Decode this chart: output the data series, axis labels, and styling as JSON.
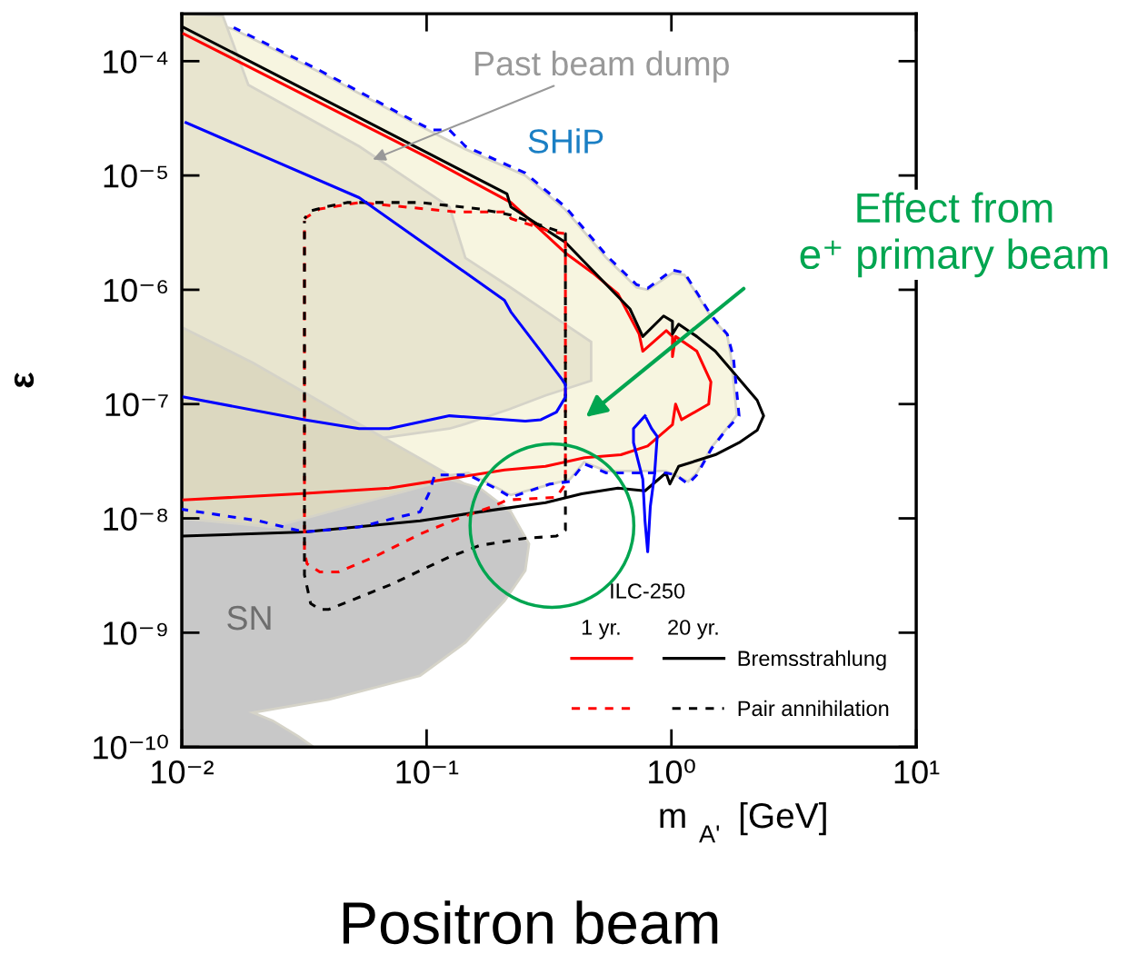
{
  "chart_data": {
    "type": "line",
    "xlabel": "m$_{A'}$ [GeV]",
    "ylabel": "ε",
    "legend_title": "ILC-250",
    "legend": "bottom right",
    "log": "xy",
    "grid": false,
    "xlim": [
      0.01,
      10
    ],
    "ylim": [
      1e-10,
      0.00026
    ],
    "xticks": [
      {
        "value": 0.01,
        "label": "10⁻²"
      },
      {
        "value": 0.1,
        "label": "10⁻¹"
      },
      {
        "value": 1,
        "label": "10⁰"
      },
      {
        "value": 10,
        "label": "10¹"
      }
    ],
    "yticks": [
      {
        "value": 1e-10,
        "label": "10⁻¹⁰"
      },
      {
        "value": 1e-09,
        "label": "10⁻⁹"
      },
      {
        "value": 1e-08,
        "label": "10⁻⁸"
      },
      {
        "value": 1e-07,
        "label": "10⁻⁷"
      },
      {
        "value": 1e-06,
        "label": "10⁻⁶"
      },
      {
        "value": 1e-05,
        "label": "10⁻⁵"
      },
      {
        "value": 0.0001,
        "label": "10⁻⁴"
      }
    ],
    "series": [
      {
        "type": "area",
        "color": "#f7f5e0",
        "x": [
          0.01,
          0.0163,
          0.0366,
          0.0885,
          0.144,
          0.253,
          0.369,
          0.542,
          0.72,
          0.8,
          1.01,
          1.13,
          1.46,
          1.69,
          1.75,
          1.85,
          1.69,
          1.46,
          1.27,
          1.17,
          0.95,
          0.542,
          0.44,
          0.385,
          0.221,
          0.148,
          0.102,
          0.053,
          0.0317,
          0.0207,
          0.01
        ],
        "values": [
          0.00026,
          0.00019,
          8e-05,
          2.9e-05,
          1.7e-05,
          1e-05,
          5e-06,
          1.9e-06,
          1.05e-06,
          1e-06,
          1.4e-06,
          1.35e-06,
          5.7e-07,
          4e-07,
          2.6e-07,
          8e-08,
          6.2e-08,
          4.2e-08,
          2.5e-08,
          2.1e-08,
          2.6e-08,
          2.6e-08,
          3.1e-08,
          2.2e-08,
          1.6e-08,
          2.5e-08,
          null,
          null,
          null,
          null,
          1.2e-08
        ]
      },
      {
        "type": "area",
        "color": "#e8e5cf",
        "x": [
          0.01,
          0.0147,
          0.0187,
          0.0245,
          0.053,
          0.124,
          0.144,
          0.217,
          0.306,
          0.47,
          0.47,
          0.306,
          0.217,
          0.144,
          0.124,
          0.053,
          0.0245,
          0.0187,
          0.0147,
          0.01
        ],
        "values": [
          0.00026,
          0.00025,
          6.2e-05,
          4.5e-05,
          1.8e-05,
          5.3e-06,
          1.9e-06,
          1.07e-06,
          6.5e-07,
          3.5e-07,
          1.6e-07,
          1.19e-07,
          9e-08,
          6.7e-08,
          6.1e-08,
          null,
          null,
          null,
          null,
          2.85e-08
        ]
      },
      {
        "type": "area",
        "color": "#dcd8c0",
        "x": [
          0.01,
          0.0195,
          0.05,
          0.1,
          0.217,
          0.1,
          0.05,
          0.01
        ],
        "values": [
          4.7e-07,
          2.3e-07,
          7.2e-08,
          3.1e-08,
          1.2e-08,
          null,
          null,
          7e-09
        ]
      },
      {
        "type": "area",
        "color": "#c8c8c8",
        "x": [
          0.01,
          0.0235,
          0.0603,
          0.124,
          0.165,
          0.221,
          0.262,
          0.253,
          0.208,
          0.144,
          0.094,
          0.04,
          0.0195,
          0.0235,
          0.0299,
          0.0345,
          0.01
        ],
        "values": [
          1e-08,
          8.4e-09,
          1.45e-08,
          2.2e-08,
          1.84e-08,
          1.14e-08,
          6e-09,
          3.5e-09,
          1.9e-09,
          8.2e-10,
          4.2e-10,
          2.6e-10,
          2e-10,
          1.7e-10,
          1.24e-10,
          1e-10,
          1e-10
        ]
      },
      {
        "line_style": "solid",
        "color": "#ff0000",
        "x": [
          0.0102,
          0.0304,
          0.1006,
          0.221,
          0.369,
          0.476,
          0.605,
          0.738,
          0.764,
          0.953,
          1.01,
          1.01,
          1.04,
          1.27,
          1.45,
          1.42,
          1.1,
          1.04,
          1.01,
          0.8,
          0.622,
          0.442,
          0.306,
          0.208,
          0.0703,
          0.0299,
          0.0102
        ],
        "values": [
          0.000173,
          5.3e-05,
          1.44e-05,
          5.8e-06,
          2.1e-06,
          1.41e-06,
          9.2e-07,
          4.1e-07,
          2.9e-07,
          4.4e-07,
          3.9e-07,
          2.6e-07,
          3.9e-07,
          2.9e-07,
          1.56e-07,
          1e-07,
          7.3e-08,
          1e-07,
          6.6e-08,
          4.3e-08,
          3.6e-08,
          3.4e-08,
          2.85e-08,
          2.65e-08,
          1.84e-08,
          1.64e-08,
          1.45e-08
        ]
      },
      {
        "line_style": "solid",
        "name": "Bremsstrahlung",
        "color": "#000000",
        "x": [
          0.0102,
          0.0466,
          0.213,
          0.221,
          0.369,
          0.677,
          0.764,
          0.929,
          1.01,
          1.01,
          1.07,
          1.27,
          1.51,
          1.79,
          2.24,
          2.38,
          2.24,
          1.89,
          1.51,
          1.07,
          0.986,
          0.95,
          0.78,
          0.605,
          0.43,
          0.306,
          0.165,
          0.094,
          0.0317,
          0.0102
        ],
        "values": [
          0.000197,
          3.7e-05,
          6.9e-06,
          5.3e-06,
          2.6e-06,
          6.8e-07,
          3.9e-07,
          5.9e-07,
          5.3e-07,
          4.1e-07,
          5e-07,
          3.9e-07,
          2.9e-07,
          1.9e-07,
          1.08e-07,
          7.9e-08,
          5.9e-08,
          4.6e-08,
          3.6e-08,
          2.85e-08,
          2e-08,
          2.5e-08,
          1.74e-08,
          1.84e-08,
          1.64e-08,
          1.37e-08,
          1.14e-08,
          9.5e-09,
          7.6e-09,
          7e-09
        ]
      },
      {
        "line_style": "dashed",
        "color": "#ff0000",
        "x": [
          0.0317,
          0.0366,
          0.053,
          0.132,
          0.213,
          0.221,
          0.326,
          0.369,
          0.369,
          0.339,
          0.213,
          0.186,
          0.135,
          0.094,
          0.0612,
          0.0436,
          0.0366,
          0.0325,
          0.0317,
          0.0317
        ],
        "values": [
          4.2e-06,
          5.1e-06,
          5.8e-06,
          4.8e-06,
          4.8e-06,
          4.2e-06,
          3.2e-06,
          3.1e-06,
          2e-08,
          1.53e-08,
          1.45e-08,
          1.27e-08,
          1e-08,
          7.3e-09,
          4.6e-09,
          3.4e-09,
          3.4e-09,
          4e-09,
          5e-09,
          4e-06
        ]
      },
      {
        "line_style": "dashed",
        "name": "Pair annihilation",
        "color": "#000000",
        "x": [
          0.0317,
          0.0336,
          0.0385,
          0.0473,
          0.094,
          0.165,
          0.221,
          0.369,
          0.369,
          0.339,
          0.253,
          0.165,
          0.124,
          0.0703,
          0.0399,
          0.0366,
          0.0336,
          0.0317,
          0.0317
        ],
        "values": [
          4.2e-06,
          4.9e-06,
          5.3e-06,
          5.8e-06,
          5.8e-06,
          5.1e-06,
          4.5e-06,
          3.1e-06,
          7.9e-09,
          7e-09,
          6.7e-09,
          5.8e-09,
          4.6e-09,
          2.6e-09,
          1.6e-09,
          1.6e-09,
          1.8e-09,
          3.2e-09,
          4e-06
        ]
      },
      {
        "line_style": "dashed",
        "color": "#0000ff",
        "x": [
          0.0163,
          0.0366,
          0.0885,
          0.105,
          0.124,
          0.144,
          0.253,
          0.369,
          0.476,
          0.542,
          0.72,
          0.8,
          1.01,
          1.13,
          1.46,
          1.69,
          1.79,
          1.89,
          1.69,
          1.46,
          1.27,
          1.17,
          1.04,
          0.95,
          0.76,
          0.542,
          0.44,
          0.385,
          0.319,
          0.221,
          0.191,
          0.148,
          0.108,
          0.102,
          0.094,
          0.053,
          0.0317,
          0.0207,
          0.01
        ],
        "values": [
          0.000197,
          8.3e-05,
          3e-05,
          2.5e-05,
          2.5e-05,
          1.8e-05,
          1.05e-05,
          5.3e-06,
          2.8e-06,
          2e-06,
          1.11e-06,
          1.03e-06,
          1.49e-06,
          1.41e-06,
          5.9e-07,
          4.1e-07,
          2.6e-07,
          7.9e-08,
          6.1e-08,
          4.1e-08,
          2.4e-08,
          2e-08,
          2.4e-08,
          2.5e-08,
          2.5e-08,
          2.5e-08,
          3e-08,
          2.1e-08,
          2e-08,
          1.53e-08,
          1.84e-08,
          2.4e-08,
          2.4e-08,
          1.64e-08,
          1.14e-08,
          8.4e-09,
          7.6e-09,
          9.5e-09,
          1.2e-08
        ]
      },
      {
        "line_style": "solid",
        "color": "#0000ff",
        "x": [
          0.0104,
          0.053,
          0.208,
          0.221,
          0.293,
          0.357,
          0.369,
          0.369,
          0.339,
          0.293,
          0.253,
          0.124,
          0.0703,
          0.053,
          0.0317,
          0.0102,
          null,
          0.78,
          0.7,
          0.7,
          0.764,
          0.78,
          0.8,
          0.82,
          0.853,
          0.875,
          0.83,
          0.79
        ],
        "values": [
          2.9e-05,
          6.4e-06,
          8.1e-07,
          6.4e-07,
          2.9e-07,
          1.65e-07,
          1.48e-07,
          1.15e-07,
          8.5e-08,
          7.3e-08,
          7.1e-08,
          7.9e-08,
          6.1e-08,
          6.1e-08,
          7.3e-08,
          1.15e-07,
          null,
          7.9e-08,
          6.1e-08,
          4.6e-08,
          2.2e-08,
          9.5e-09,
          5.1e-09,
          1.27e-08,
          2.4e-08,
          5.2e-08,
          6.1e-08,
          7.5e-08
        ]
      }
    ],
    "annotations": [
      {
        "text": "Past beam dump",
        "x": 0.0603,
        "y": 1.38e-05
      },
      "Effect from\ne⁺ primary beam",
      "1 yr.",
      "20 yr.",
      "Positron beam",
      "SHiP",
      "SN"
    ]
  }
}
